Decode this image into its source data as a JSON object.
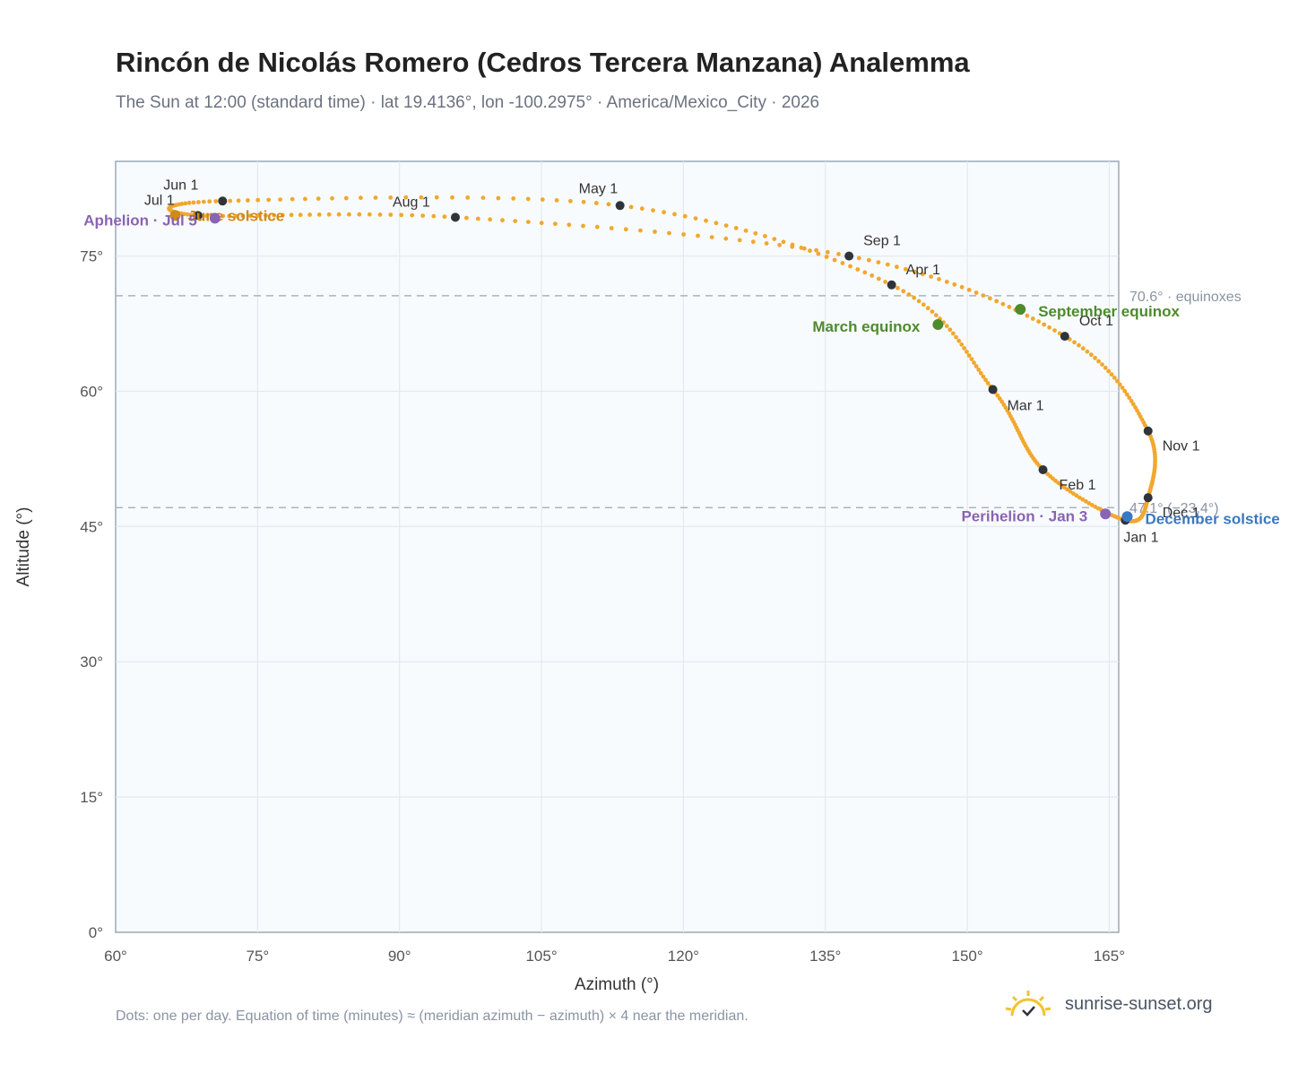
{
  "header": {
    "title": "Rincón de Nicolás Romero (Cedros Tercera Manzana) Analemma",
    "subtitle": "The Sun at 12:00 (standard time) · lat 19.4136°, lon -100.2975° · America/Mexico_City · 2026"
  },
  "footer": {
    "note": "Dots: one per day. Equation of time (minutes) ≈ (meridian azimuth − azimuth) × 4 near the meridian.",
    "brand": "sunrise-sunset.org"
  },
  "chart_data": {
    "type": "scatter",
    "xlabel": "Azimuth (°)",
    "ylabel": "Altitude (°)",
    "xlim": [
      60,
      166
    ],
    "ylim": [
      0,
      85.5
    ],
    "x_ticks": [
      60,
      75,
      90,
      105,
      120,
      135,
      150,
      165
    ],
    "y_ticks": [
      0,
      15,
      30,
      45,
      60,
      75
    ],
    "x_tick_labels": [
      "60°",
      "75°",
      "90°",
      "105°",
      "120°",
      "135°",
      "150°",
      "165°"
    ],
    "y_tick_labels": [
      "0°",
      "15°",
      "30°",
      "45°",
      "60°",
      "75°"
    ],
    "grid": true,
    "colors": {
      "curve": "#f2a72e",
      "month_marker": "#2f343b",
      "equinox": "#4e8a2e",
      "december_solstice": "#3a78c0",
      "june_solstice": "#d08a1a",
      "aphelion_perihelion": "#8a63b4",
      "reference": "#a8b4c0"
    },
    "months": [
      {
        "label": "Jan 1",
        "az": 166.7,
        "alt": 45.7
      },
      {
        "label": "Feb 1",
        "az": 158.0,
        "alt": 51.3
      },
      {
        "label": "Mar 1",
        "az": 152.7,
        "alt": 60.2
      },
      {
        "label": "Apr 1",
        "az": 142.0,
        "alt": 71.8
      },
      {
        "label": "May 1",
        "az": 113.3,
        "alt": 80.6
      },
      {
        "label": "Jun 1",
        "az": 71.3,
        "alt": 81.1
      },
      {
        "label": "Jul 1",
        "az": 68.7,
        "alt": 79.5
      },
      {
        "label": "Aug 1",
        "az": 95.9,
        "alt": 79.3
      },
      {
        "label": "Sep 1",
        "az": 137.5,
        "alt": 75.0
      },
      {
        "label": "Oct 1",
        "az": 160.3,
        "alt": 66.1
      },
      {
        "label": "Nov 1",
        "az": 169.1,
        "alt": 55.6
      },
      {
        "label": "Dec 1",
        "az": 169.1,
        "alt": 48.2
      }
    ],
    "events": [
      {
        "label": "March equinox",
        "az": 146.9,
        "alt": 67.4,
        "kind": "equinox"
      },
      {
        "label": "September equinox",
        "az": 155.6,
        "alt": 69.1,
        "kind": "equinox"
      },
      {
        "label": "June solstice",
        "az": 66.3,
        "alt": 79.5,
        "kind": "june_solstice"
      },
      {
        "label": "December solstice",
        "az": 166.9,
        "alt": 46.1,
        "kind": "december_solstice"
      },
      {
        "label": "Aphelion · Jul 5",
        "az": 70.5,
        "alt": 79.2,
        "kind": "aphelion_perihelion"
      },
      {
        "label": "Perihelion · Jan 3",
        "az": 164.6,
        "alt": 46.4,
        "kind": "aphelion_perihelion"
      }
    ],
    "reference_lines": [
      {
        "alt": 70.6,
        "label": "70.6° · equinoxes"
      },
      {
        "alt": 47.1,
        "label": "47.1° (−23.4°)"
      }
    ]
  }
}
